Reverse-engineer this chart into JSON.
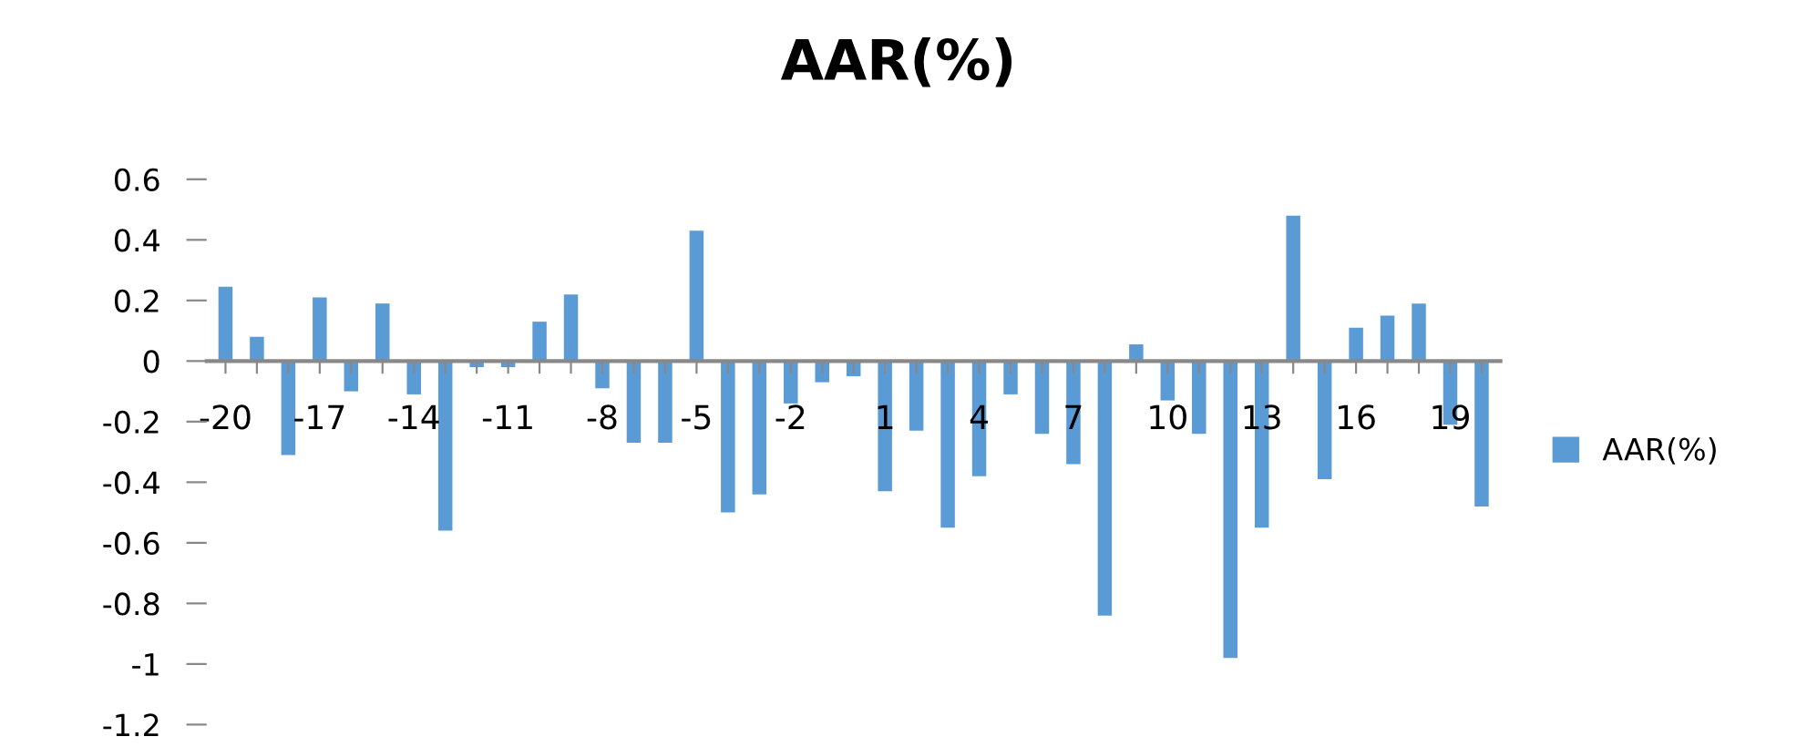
{
  "chart_data": {
    "type": "bar",
    "title": "AAR(%)",
    "categories": [
      "-20",
      null,
      null,
      "-17",
      null,
      null,
      "-14",
      null,
      null,
      "-11",
      null,
      null,
      "-8",
      null,
      null,
      "-5",
      null,
      null,
      "-2",
      null,
      null,
      "1",
      null,
      null,
      "4",
      null,
      null,
      "7",
      null,
      null,
      "10",
      null,
      null,
      "13",
      null,
      null,
      "16",
      null,
      null,
      "19",
      null
    ],
    "series": [
      {
        "name": "AAR(%)",
        "color": "#5b9bd5",
        "values": [
          0.245,
          0.08,
          -0.31,
          0.21,
          -0.1,
          0.19,
          -0.11,
          -0.56,
          -0.02,
          -0.02,
          0.13,
          0.22,
          -0.09,
          -0.27,
          -0.27,
          0.43,
          -0.5,
          -0.44,
          -0.14,
          -0.07,
          -0.05,
          -0.43,
          -0.23,
          -0.55,
          -0.38,
          -0.11,
          -0.24,
          -0.34,
          -0.84,
          0.055,
          -0.13,
          -0.24,
          -0.98,
          -0.55,
          0.48,
          -0.39,
          0.11,
          0.15,
          0.19,
          -0.21,
          -0.48
        ]
      }
    ],
    "ylim": [
      -1.2,
      0.6
    ],
    "yticks": [
      0.6,
      0.4,
      0.2,
      0,
      -0.2,
      -0.4,
      -0.6,
      -0.8,
      -1,
      -1.2
    ],
    "grid": false,
    "legend": "right"
  }
}
